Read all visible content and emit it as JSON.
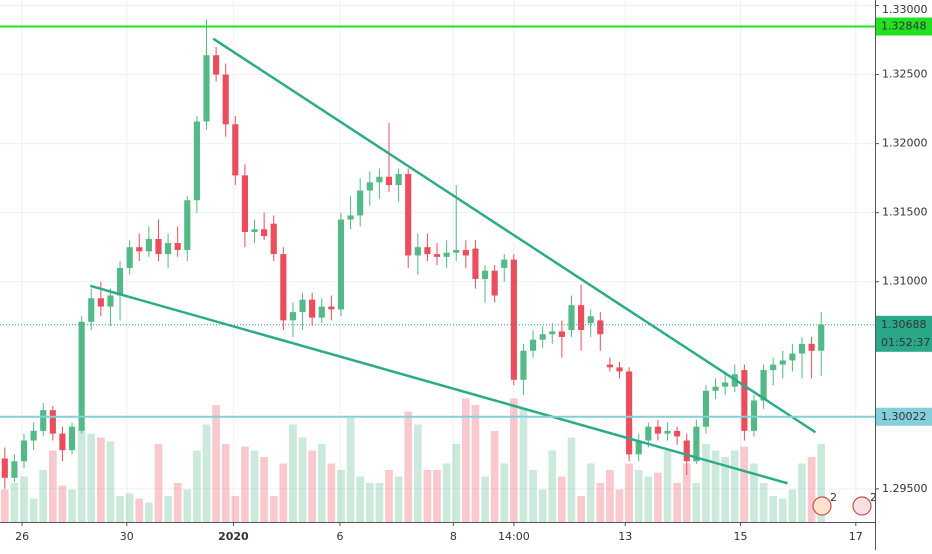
{
  "chart_data": {
    "type": "candlestick",
    "up_color": "#53b987",
    "down_color": "#eb4d5c",
    "xlim": [
      -0.5,
      90.6
    ],
    "ylim": [
      1.2926,
      1.3304
    ],
    "y2lim": [
      0,
      100
    ],
    "grid": true,
    "xticks": [
      {
        "value": 1.8,
        "label": "26"
      },
      {
        "value": 12.7,
        "label": "30"
      },
      {
        "value": 23.8,
        "label": "2020"
      },
      {
        "value": 34.9,
        "label": "6"
      },
      {
        "value": 46.7,
        "label": "8"
      },
      {
        "value": 53.0,
        "label": "14:00"
      },
      {
        "value": 64.6,
        "label": "13"
      },
      {
        "value": 76.6,
        "label": "15"
      },
      {
        "value": 88.6,
        "label": "17"
      }
    ],
    "yticks": [
      {
        "value": 1.33,
        "label": "1.33000"
      },
      {
        "value": 1.325,
        "label": "1.32500"
      },
      {
        "value": 1.32,
        "label": "1.32000"
      },
      {
        "value": 1.315,
        "label": "1.31500"
      },
      {
        "value": 1.31,
        "label": "1.31000"
      },
      {
        "value": 1.295,
        "label": "1.29500"
      }
    ],
    "ohlc": [
      [
        1.2972,
        1.298,
        1.295,
        1.2958
      ],
      [
        1.2958,
        1.2975,
        1.2955,
        1.297
      ],
      [
        1.297,
        1.299,
        1.2965,
        1.2985
      ],
      [
        1.2985,
        1.2998,
        1.2978,
        1.2992
      ],
      [
        1.2992,
        1.3012,
        1.2988,
        1.3007
      ],
      [
        1.3007,
        1.301,
        1.2985,
        1.299
      ],
      [
        1.299,
        1.2995,
        1.297,
        1.2978
      ],
      [
        1.2978,
        1.2998,
        1.2975,
        1.2995
      ],
      [
        1.2992,
        1.3075,
        1.299,
        1.3071
      ],
      [
        1.3071,
        1.3095,
        1.3065,
        1.3088
      ],
      [
        1.3088,
        1.31,
        1.3075,
        1.3082
      ],
      [
        1.3082,
        1.3095,
        1.3068,
        1.309
      ],
      [
        1.309,
        1.3115,
        1.3072,
        1.311
      ],
      [
        1.311,
        1.313,
        1.3105,
        1.3125
      ],
      [
        1.3125,
        1.3135,
        1.3115,
        1.3122
      ],
      [
        1.3122,
        1.314,
        1.3118,
        1.3131
      ],
      [
        1.3131,
        1.3145,
        1.3115,
        1.312
      ],
      [
        1.312,
        1.3135,
        1.311,
        1.3128
      ],
      [
        1.3128,
        1.314,
        1.3118,
        1.3123
      ],
      [
        1.3123,
        1.3162,
        1.3115,
        1.3159
      ],
      [
        1.3159,
        1.322,
        1.315,
        1.3216
      ],
      [
        1.3216,
        1.329,
        1.321,
        1.3264
      ],
      [
        1.3264,
        1.327,
        1.3245,
        1.325
      ],
      [
        1.325,
        1.3258,
        1.3205,
        1.3214
      ],
      [
        1.3214,
        1.322,
        1.317,
        1.3177
      ],
      [
        1.3177,
        1.3185,
        1.3125,
        1.3136
      ],
      [
        1.3136,
        1.3145,
        1.3128,
        1.3138
      ],
      [
        1.3138,
        1.315,
        1.313,
        1.3133
      ],
      [
        1.3142,
        1.3148,
        1.3115,
        1.312
      ],
      [
        1.312,
        1.3125,
        1.3065,
        1.3072
      ],
      [
        1.3072,
        1.3085,
        1.306,
        1.3078
      ],
      [
        1.3078,
        1.3092,
        1.3065,
        1.3087
      ],
      [
        1.3087,
        1.3092,
        1.3068,
        1.3074
      ],
      [
        1.3074,
        1.3088,
        1.307,
        1.3082
      ],
      [
        1.3082,
        1.309,
        1.3072,
        1.308
      ],
      [
        1.308,
        1.315,
        1.3075,
        1.3145
      ],
      [
        1.3145,
        1.3162,
        1.3138,
        1.3148
      ],
      [
        1.3148,
        1.3175,
        1.314,
        1.3166
      ],
      [
        1.3166,
        1.318,
        1.3155,
        1.3172
      ],
      [
        1.3172,
        1.3182,
        1.316,
        1.3176
      ],
      [
        1.3176,
        1.3215,
        1.3165,
        1.317
      ],
      [
        1.317,
        1.3182,
        1.3158,
        1.3178
      ],
      [
        1.3178,
        1.3182,
        1.311,
        1.3119
      ],
      [
        1.3119,
        1.3135,
        1.3105,
        1.3125
      ],
      [
        1.3125,
        1.3135,
        1.3115,
        1.312
      ],
      [
        1.312,
        1.3128,
        1.3112,
        1.3118
      ],
      [
        1.3118,
        1.313,
        1.311,
        1.3121
      ],
      [
        1.3121,
        1.317,
        1.3115,
        1.3123
      ],
      [
        1.3123,
        1.313,
        1.311,
        1.3119
      ],
      [
        1.3124,
        1.313,
        1.3095,
        1.3102
      ],
      [
        1.3102,
        1.3112,
        1.3085,
        1.3108
      ],
      [
        1.3108,
        1.3112,
        1.3085,
        1.309
      ],
      [
        1.311,
        1.312,
        1.31,
        1.3116
      ],
      [
        1.3116,
        1.312,
        1.3025,
        1.3029
      ],
      [
        1.3029,
        1.3055,
        1.3018,
        1.305
      ],
      [
        1.305,
        1.3065,
        1.3045,
        1.3058
      ],
      [
        1.3058,
        1.3068,
        1.3052,
        1.3062
      ],
      [
        1.3062,
        1.307,
        1.3055,
        1.3064
      ],
      [
        1.3064,
        1.3072,
        1.3045,
        1.306
      ],
      [
        1.3065,
        1.309,
        1.306,
        1.3083
      ],
      [
        1.3083,
        1.3098,
        1.305,
        1.3065
      ],
      [
        1.307,
        1.308,
        1.306,
        1.3075
      ],
      [
        1.3072,
        1.3078,
        1.305,
        1.3062
      ],
      [
        1.304,
        1.3045,
        1.3035,
        1.3038
      ],
      [
        1.3038,
        1.3042,
        1.303,
        1.3035
      ],
      [
        1.3035,
        1.3038,
        1.297,
        1.2975
      ],
      [
        1.2975,
        1.299,
        1.297,
        1.2985
      ],
      [
        1.2985,
        1.2998,
        1.298,
        1.2995
      ],
      [
        1.2995,
        1.3,
        1.2985,
        1.299
      ],
      [
        1.299,
        1.2998,
        1.2985,
        1.2992
      ],
      [
        1.2992,
        1.2995,
        1.2982,
        1.2988
      ],
      [
        1.2985,
        1.299,
        1.296,
        1.297
      ],
      [
        1.297,
        1.3,
        1.2968,
        1.2995
      ],
      [
        1.2995,
        1.3025,
        1.299,
        1.3021
      ],
      [
        1.3021,
        1.303,
        1.3015,
        1.3024
      ],
      [
        1.3024,
        1.3035,
        1.3018,
        1.3027
      ],
      [
        1.3024,
        1.304,
        1.302,
        1.3033
      ],
      [
        1.3036,
        1.304,
        1.2985,
        1.2992
      ],
      [
        1.2992,
        1.3018,
        1.2988,
        1.3014
      ],
      [
        1.3014,
        1.304,
        1.3008,
        1.3036
      ],
      [
        1.3036,
        1.3045,
        1.3025,
        1.304
      ],
      [
        1.304,
        1.305,
        1.303,
        1.3043
      ],
      [
        1.3043,
        1.3055,
        1.3035,
        1.3048
      ],
      [
        1.3048,
        1.306,
        1.303,
        1.3055
      ],
      [
        1.3055,
        1.306,
        1.303,
        1.305
      ],
      [
        1.305,
        1.3078,
        1.3032,
        1.3069
      ]
    ],
    "volume": [
      25,
      30,
      35,
      18,
      40,
      55,
      28,
      25,
      70,
      68,
      65,
      62,
      20,
      22,
      18,
      15,
      60,
      20,
      30,
      25,
      55,
      75,
      90,
      60,
      20,
      58,
      55,
      50,
      20,
      45,
      75,
      65,
      55,
      60,
      45,
      40,
      80,
      35,
      30,
      30,
      40,
      35,
      85,
      75,
      40,
      40,
      45,
      60,
      95,
      90,
      35,
      70,
      45,
      95,
      88,
      40,
      25,
      55,
      35,
      65,
      20,
      45,
      30,
      40,
      25,
      45,
      40,
      35,
      38,
      55,
      30,
      45,
      30,
      60,
      55,
      50,
      55,
      58,
      45,
      30,
      20,
      18,
      25,
      45,
      50,
      60
    ],
    "trendlines": [
      {
        "x": [
          21.7,
          84.4
        ],
        "y": [
          1.3276,
          1.2991
        ],
        "color": "#2bab88"
      },
      {
        "x": [
          8.9,
          81.5
        ],
        "y": [
          1.3097,
          1.2954
        ],
        "color": "#2bab88"
      }
    ],
    "levels": [
      {
        "value": 1.32848,
        "label": "1.32848",
        "color": "#22e022"
      },
      {
        "value": 1.30022,
        "label": "1.30022",
        "color": "#84cfdc"
      }
    ],
    "last_price": {
      "value": 1.30688,
      "label": "1.30688",
      "countdown": "01:52:37",
      "color": "#2aa889"
    },
    "events": [
      {
        "label": "2"
      },
      {
        "label": "2"
      }
    ]
  }
}
